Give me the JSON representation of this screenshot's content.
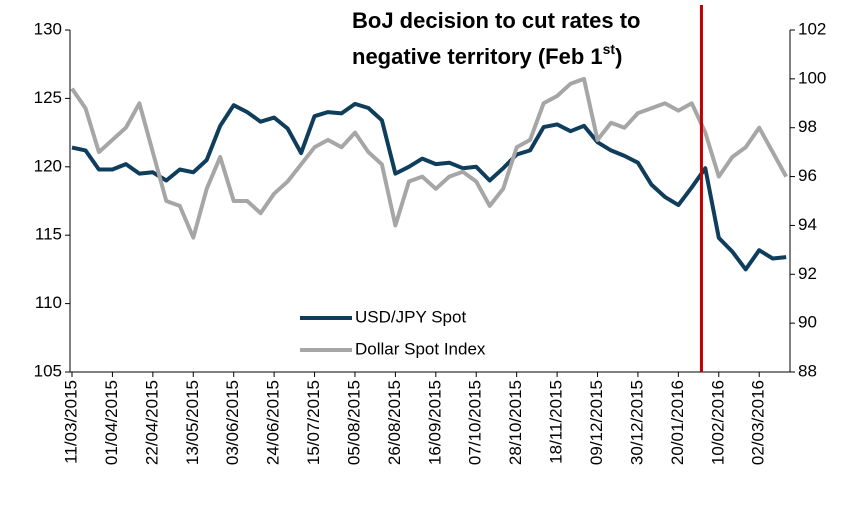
{
  "chart_data": {
    "type": "line",
    "annotation": {
      "lines": [
        "BoJ decision to cut rates to",
        "negative territory (Feb 1"
      ],
      "superscript": "st",
      "suffix": ")",
      "date": "01/02/2016",
      "color": "#c00000"
    },
    "x": [
      "11/03/2015",
      "18/03/2015",
      "25/03/2015",
      "01/04/2015",
      "08/04/2015",
      "15/04/2015",
      "22/04/2015",
      "29/04/2015",
      "06/05/2015",
      "13/05/2015",
      "20/05/2015",
      "27/05/2015",
      "03/06/2015",
      "10/06/2015",
      "17/06/2015",
      "24/06/2015",
      "01/07/2015",
      "08/07/2015",
      "15/07/2015",
      "22/07/2015",
      "29/07/2015",
      "05/08/2015",
      "12/08/2015",
      "19/08/2015",
      "26/08/2015",
      "02/09/2015",
      "09/09/2015",
      "16/09/2015",
      "23/09/2015",
      "30/09/2015",
      "07/10/2015",
      "14/10/2015",
      "21/10/2015",
      "28/10/2015",
      "04/11/2015",
      "11/11/2015",
      "18/11/2015",
      "25/11/2015",
      "02/12/2015",
      "09/12/2015",
      "16/12/2015",
      "23/12/2015",
      "30/12/2015",
      "06/01/2016",
      "13/01/2016",
      "20/01/2016",
      "27/01/2016",
      "03/02/2016",
      "10/02/2016",
      "17/02/2016",
      "24/02/2016",
      "02/03/2016",
      "09/03/2016",
      "16/03/2016"
    ],
    "series": [
      {
        "name": "USD/JPY Spot",
        "color": "#0f3d5c",
        "axis": "y",
        "values": [
          121.4,
          121.2,
          119.8,
          119.8,
          120.2,
          119.5,
          119.6,
          119.0,
          119.8,
          119.6,
          120.5,
          123.0,
          124.5,
          124.0,
          123.3,
          123.6,
          122.8,
          121.0,
          123.7,
          124.0,
          123.9,
          124.6,
          124.3,
          123.4,
          119.5,
          120.0,
          120.6,
          120.2,
          120.3,
          119.9,
          120.0,
          119.0,
          119.9,
          120.9,
          121.2,
          122.9,
          123.1,
          122.6,
          123.0,
          121.8,
          121.2,
          120.8,
          120.3,
          118.7,
          117.8,
          117.2,
          118.5,
          119.9,
          114.8,
          113.8,
          112.5,
          113.9,
          113.3,
          113.4
        ]
      },
      {
        "name": "Dollar Spot Index",
        "color": "#a6a6a6",
        "axis": "y2",
        "values": [
          99.6,
          98.8,
          97.0,
          97.5,
          98.0,
          99.0,
          97.0,
          95.0,
          94.8,
          93.5,
          95.5,
          96.8,
          95.0,
          95.0,
          94.5,
          95.3,
          95.8,
          96.5,
          97.2,
          97.5,
          97.2,
          97.8,
          97.0,
          96.5,
          94.0,
          95.8,
          96.0,
          95.5,
          96.0,
          96.2,
          95.8,
          94.8,
          95.5,
          97.2,
          97.5,
          99.0,
          99.3,
          99.8,
          100.0,
          97.5,
          98.2,
          98.0,
          98.6,
          98.8,
          99.0,
          98.7,
          99.0,
          97.8,
          96.0,
          96.8,
          97.2,
          98.0,
          97.0,
          96.0
        ]
      }
    ],
    "xlim": [
      "11/03/2015",
      "18/03/2016"
    ],
    "xticks": [
      "11/03/2015",
      "01/04/2015",
      "22/04/2015",
      "13/05/2015",
      "03/06/2015",
      "24/06/2015",
      "15/07/2015",
      "05/08/2015",
      "26/08/2015",
      "16/09/2015",
      "07/10/2015",
      "28/10/2015",
      "18/11/2015",
      "09/12/2015",
      "30/12/2015",
      "20/01/2016",
      "10/02/2016",
      "02/03/2016"
    ],
    "ylim": [
      105,
      130
    ],
    "yticks": [
      105,
      110,
      115,
      120,
      125,
      130
    ],
    "y2lim": [
      88,
      102
    ],
    "y2ticks": [
      88,
      90,
      92,
      94,
      96,
      98,
      100,
      102
    ],
    "grid": false
  }
}
